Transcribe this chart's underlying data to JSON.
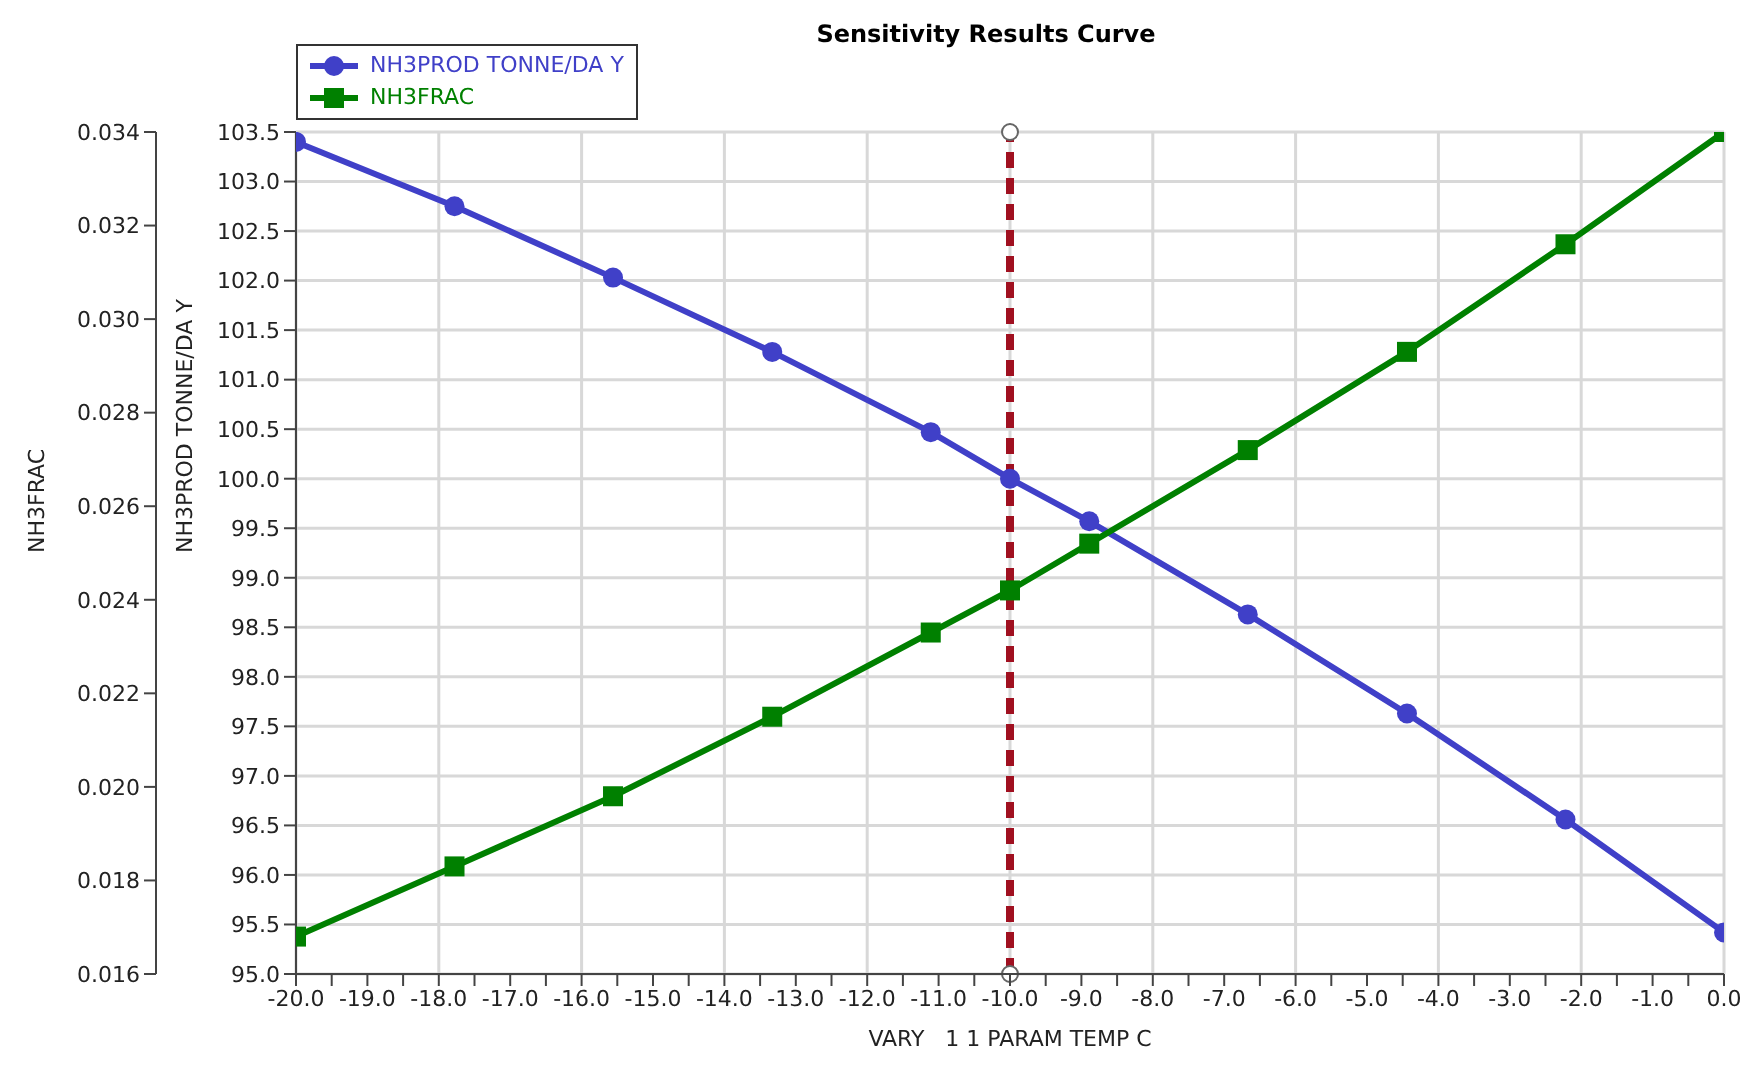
{
  "chart_data": {
    "type": "line",
    "title": "Sensitivity Results Curve",
    "xlabel": "VARY   1 1 PARAM TEMP C",
    "ylabel": "NH3PROD TONNE/DA Y",
    "y2label": "NH3FRAC",
    "x": [
      -20,
      -17.78,
      -15.56,
      -13.33,
      -11.11,
      -10,
      -8.89,
      -6.67,
      -4.44,
      -2.22,
      0
    ],
    "series": [
      {
        "name": "NH3PROD TONNE/DA Y",
        "color": "#4040c8",
        "marker": "circle",
        "values": [
          103.4,
          102.75,
          102.03,
          101.28,
          100.47,
          100.0,
          99.57,
          98.63,
          97.63,
          96.56,
          95.42
        ]
      },
      {
        "name": "NH3FRAC",
        "color": "#008000",
        "marker": "square",
        "axis": "y2",
        "values": [
          0.0168,
          0.0183,
          0.0198,
          0.0215,
          0.0233,
          0.0242,
          0.0252,
          0.0272,
          0.0293,
          0.0316,
          0.034
        ]
      }
    ],
    "xlim": [
      -20,
      0
    ],
    "xticks": [
      {
        "value": -20,
        "label": "-20.0"
      },
      {
        "value": -19.5,
        "label": null
      },
      {
        "value": -19,
        "label": "-19.0"
      },
      {
        "value": -18.5,
        "label": null
      },
      {
        "value": -18,
        "label": "-18.0"
      },
      {
        "value": -17.5,
        "label": null
      },
      {
        "value": -17,
        "label": "-17.0"
      },
      {
        "value": -16.5,
        "label": null
      },
      {
        "value": -16,
        "label": "-16.0"
      },
      {
        "value": -15.5,
        "label": null
      },
      {
        "value": -15,
        "label": "-15.0"
      },
      {
        "value": -14.5,
        "label": null
      },
      {
        "value": -14,
        "label": "-14.0"
      },
      {
        "value": -13.5,
        "label": null
      },
      {
        "value": -13,
        "label": "-13.0"
      },
      {
        "value": -12.5,
        "label": null
      },
      {
        "value": -12,
        "label": "-12.0"
      },
      {
        "value": -11.5,
        "label": null
      },
      {
        "value": -11,
        "label": "-11.0"
      },
      {
        "value": -10.5,
        "label": null
      },
      {
        "value": -10,
        "label": "-10.0"
      },
      {
        "value": -9.5,
        "label": null
      },
      {
        "value": -9,
        "label": "-9.0"
      },
      {
        "value": -8.5,
        "label": null
      },
      {
        "value": -8,
        "label": "-8.0"
      },
      {
        "value": -7.5,
        "label": null
      },
      {
        "value": -7,
        "label": "-7.0"
      },
      {
        "value": -6.5,
        "label": null
      },
      {
        "value": -6,
        "label": "-6.0"
      },
      {
        "value": -5.5,
        "label": null
      },
      {
        "value": -5,
        "label": "-5.0"
      },
      {
        "value": -4.5,
        "label": null
      },
      {
        "value": -4,
        "label": "-4.0"
      },
      {
        "value": -3.5,
        "label": null
      },
      {
        "value": -3,
        "label": "-3.0"
      },
      {
        "value": -2.5,
        "label": null
      },
      {
        "value": -2,
        "label": "-2.0"
      },
      {
        "value": -1.5,
        "label": null
      },
      {
        "value": -1,
        "label": "-1.0"
      },
      {
        "value": -0.5,
        "label": null
      },
      {
        "value": 0,
        "label": "0.0"
      }
    ],
    "ylim": [
      95,
      103.5
    ],
    "yticks": [
      {
        "value": 95,
        "label": "95.0"
      },
      95.5,
      {
        "value": 96,
        "label": "96.0"
      },
      96.5,
      {
        "value": 97,
        "label": "97.0"
      },
      97.5,
      {
        "value": 98,
        "label": "98.0"
      },
      98.5,
      {
        "value": 99,
        "label": "99.0"
      },
      99.5,
      {
        "value": 100,
        "label": "100.0"
      },
      100.5,
      {
        "value": 101,
        "label": "101.0"
      },
      101.5,
      {
        "value": 102,
        "label": "102.0"
      },
      102.5,
      {
        "value": 103,
        "label": "103.0"
      },
      103.5
    ],
    "y2lim": [
      0.016,
      0.034
    ],
    "y2ticks": [
      0.016,
      0.018,
      {
        "value": 0.02,
        "label": "0.020"
      },
      0.022,
      0.024,
      0.026,
      0.028,
      {
        "value": 0.03,
        "label": "0.030"
      },
      0.032,
      0.034
    ],
    "ref_lines": [
      {
        "axis": "x",
        "value": -10,
        "color": "#a01020",
        "line_style": "dashed"
      }
    ],
    "grid": true,
    "legend": "top",
    "line_style": "solid"
  }
}
